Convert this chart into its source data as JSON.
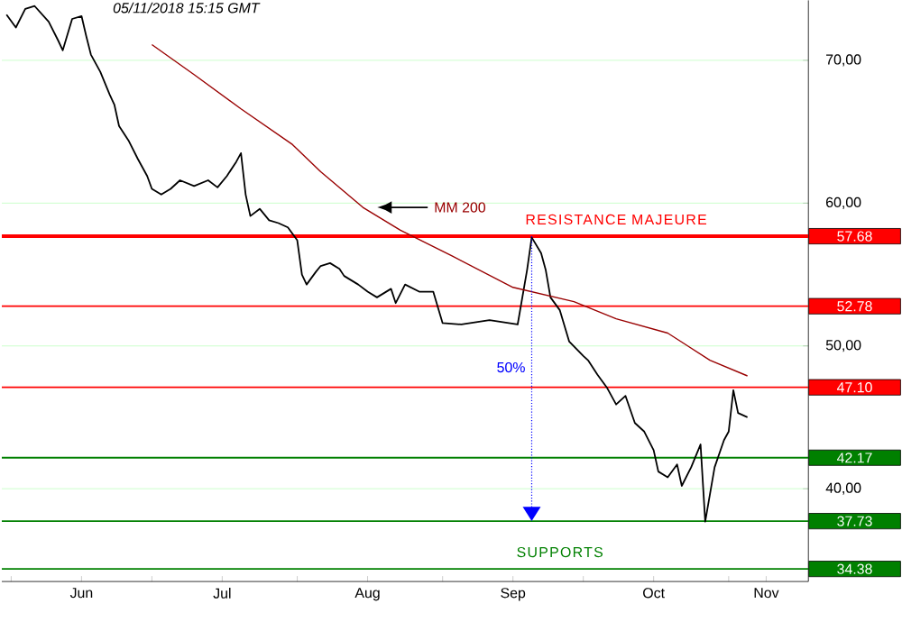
{
  "chart_data": {
    "type": "line",
    "xlim": [
      "2018-05-30",
      "2018-11-18"
    ],
    "xticks": [
      {
        "value": "2018-06-01",
        "label": null
      },
      {
        "value": "2018-06-16",
        "label": "Jun"
      },
      {
        "value": "2018-07-01",
        "label": null
      },
      {
        "value": "2018-07-16",
        "label": "Jul"
      },
      {
        "value": "2018-08-01",
        "label": null
      },
      {
        "value": "2018-08-16",
        "label": "Aug"
      },
      {
        "value": "2018-09-01",
        "label": null
      },
      {
        "value": "2018-09-16",
        "label": "Sep"
      },
      {
        "value": "2018-10-01",
        "label": null
      },
      {
        "value": "2018-10-16",
        "label": "Oct"
      },
      {
        "value": "2018-11-01",
        "label": null
      },
      {
        "value": "2018-11-09",
        "label": "Nov"
      }
    ],
    "ylim": [
      33.5,
      74.2
    ],
    "yticks": [
      {
        "value": 40,
        "label": "40,00"
      },
      {
        "value": 50,
        "label": "50,00"
      },
      {
        "value": 60,
        "label": "60,00"
      },
      {
        "value": 70,
        "label": "70,00"
      }
    ],
    "grid": "y",
    "series": [
      {
        "color": "#000000",
        "x": [
          "2018-05-31",
          "2018-06-02",
          "2018-06-04",
          "2018-06-06",
          "2018-06-09",
          "2018-06-11",
          "2018-06-12",
          "2018-06-14",
          "2018-06-16",
          "2018-06-17",
          "2018-06-18",
          "2018-06-20",
          "2018-06-22",
          "2018-06-23",
          "2018-06-24",
          "2018-06-26",
          "2018-06-28",
          "2018-06-30",
          "2018-07-01",
          "2018-07-03",
          "2018-07-05",
          "2018-07-07",
          "2018-07-10",
          "2018-07-13",
          "2018-07-15",
          "2018-07-17",
          "2018-07-19",
          "2018-07-20",
          "2018-07-21",
          "2018-07-22",
          "2018-07-24",
          "2018-07-26",
          "2018-07-28",
          "2018-07-30",
          "2018-08-01",
          "2018-08-02",
          "2018-08-03",
          "2018-08-05",
          "2018-08-06",
          "2018-08-08",
          "2018-08-10",
          "2018-08-11",
          "2018-08-14",
          "2018-08-16",
          "2018-08-18",
          "2018-08-21",
          "2018-08-22",
          "2018-08-24",
          "2018-08-27",
          "2018-08-30",
          "2018-09-01",
          "2018-09-05",
          "2018-09-11",
          "2018-09-17",
          "2018-09-19",
          "2018-09-20",
          "2018-09-22",
          "2018-09-23",
          "2018-09-24",
          "2018-09-26",
          "2018-09-28",
          "2018-10-01",
          "2018-10-02",
          "2018-10-04",
          "2018-10-06",
          "2018-10-08",
          "2018-10-10",
          "2018-10-12",
          "2018-10-14",
          "2018-10-16",
          "2018-10-17",
          "2018-10-19",
          "2018-10-21",
          "2018-10-22",
          "2018-10-24",
          "2018-10-26",
          "2018-10-27",
          "2018-10-29",
          "2018-10-31",
          "2018-11-01",
          "2018-11-02",
          "2018-11-03",
          "2018-11-05"
        ],
        "values": [
          73.2,
          72.3,
          73.6,
          73.8,
          72.7,
          71.4,
          70.7,
          72.9,
          73.1,
          71.7,
          70.4,
          69.2,
          67.6,
          66.9,
          65.4,
          64.4,
          63.1,
          61.9,
          61.0,
          60.6,
          61.0,
          61.6,
          61.2,
          61.6,
          61.1,
          61.9,
          62.9,
          63.5,
          60.6,
          59.1,
          59.6,
          58.8,
          58.6,
          58.3,
          57.4,
          55.0,
          54.3,
          55.2,
          55.6,
          55.8,
          55.4,
          54.9,
          54.3,
          53.8,
          53.4,
          54.0,
          53.0,
          54.3,
          53.8,
          53.8,
          51.6,
          51.5,
          51.8,
          51.5,
          55.3,
          57.6,
          56.5,
          55.3,
          53.4,
          52.5,
          50.3,
          49.3,
          49.0,
          48.0,
          47.1,
          45.9,
          46.5,
          44.6,
          44.0,
          42.7,
          41.2,
          40.8,
          41.7,
          40.2,
          41.5,
          43.1,
          37.7,
          41.5,
          43.4,
          44.0,
          46.9,
          45.3,
          45.0
        ]
      },
      {
        "name": "MM 200",
        "color": "#990000",
        "x": [
          "2018-07-01",
          "2018-07-10",
          "2018-07-20",
          "2018-07-31",
          "2018-08-06",
          "2018-08-15",
          "2018-08-23",
          "2018-09-03",
          "2018-09-16",
          "2018-09-29",
          "2018-10-08",
          "2018-10-19",
          "2018-10-28",
          "2018-11-05"
        ],
        "values": [
          71.1,
          69.0,
          66.6,
          64.1,
          62.2,
          59.7,
          58.1,
          56.3,
          54.1,
          53.1,
          51.9,
          50.9,
          49.0,
          47.9
        ]
      }
    ],
    "ref_lines": [
      {
        "axis": "y",
        "value": 57.68,
        "label": "57.68",
        "color": "#ff0000"
      },
      {
        "axis": "y",
        "value": 52.78,
        "label": "52.78",
        "color": "#ff0000"
      },
      {
        "axis": "y",
        "value": 47.1,
        "label": "47.10",
        "color": "#ff0000"
      },
      {
        "axis": "y",
        "value": 42.17,
        "label": "42.17",
        "color": "#008000"
      },
      {
        "axis": "y",
        "value": 37.73,
        "label": "37.73",
        "color": "#008000"
      },
      {
        "axis": "y",
        "value": 34.38,
        "label": "34.38",
        "color": "#008000"
      }
    ],
    "annotations": [
      "05/11/2018 15:15 GMT",
      {
        "text": "RESISTANCE MAJEURE",
        "x": "2018-10-08",
        "y": 57.68
      },
      {
        "text": "SUPPORTS",
        "x": "2018-09-26",
        "y": 34.38
      },
      {
        "text": "50%",
        "x": "2018-09-20",
        "y": 47.7
      }
    ]
  }
}
